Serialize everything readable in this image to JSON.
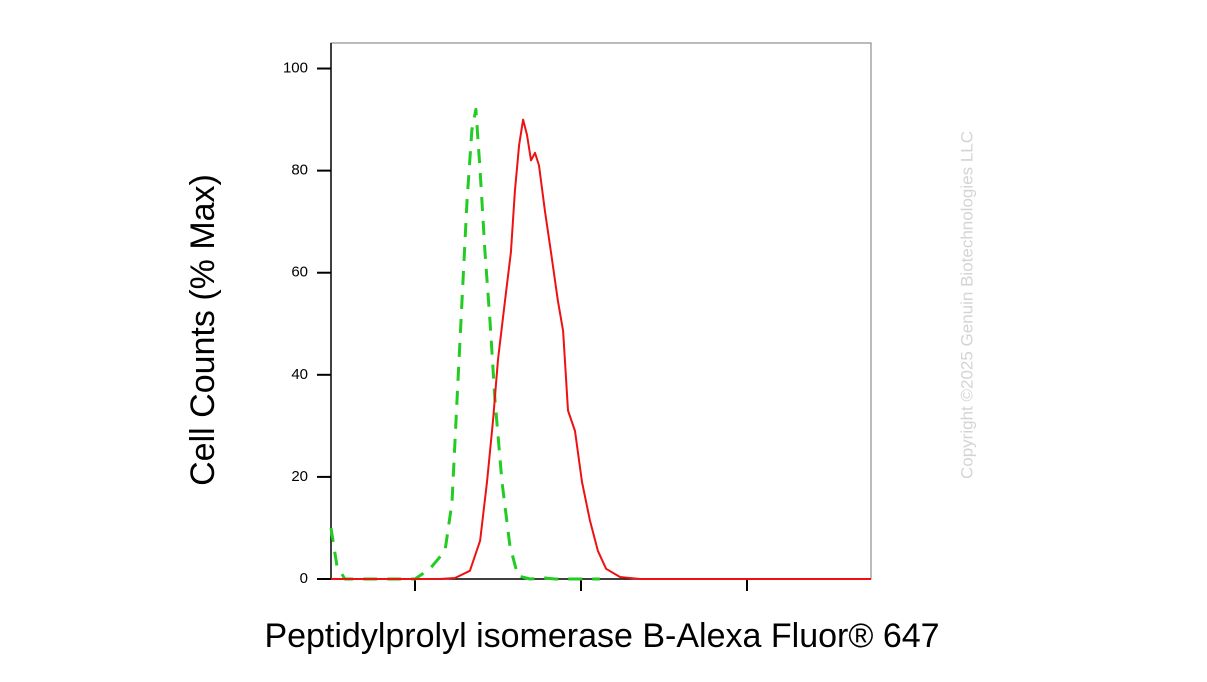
{
  "chart_data": {
    "type": "line",
    "ylabel": "Cell Counts (% Max)",
    "xlabel": "Peptidylprolyl isomerase B-Alexa Fluor® 647",
    "watermark": "Copyright ©2025 Genuin Biotechnologies LLC",
    "xlim": [
      2.494,
      5.747
    ],
    "xticks": [
      3,
      4,
      5
    ],
    "ylim": [
      0,
      105
    ],
    "yticks": [
      0,
      20,
      40,
      60,
      80,
      100
    ],
    "series": [
      {
        "color": "#22cc22",
        "dashed": true,
        "x": [
          2.494,
          2.53,
          2.578,
          3.0,
          3.09,
          3.181,
          3.223,
          3.253,
          3.283,
          3.313,
          3.343,
          3.367,
          3.392,
          3.422,
          3.452,
          3.482,
          3.524,
          3.572,
          3.62,
          3.693,
          3.783,
          3.843,
          4.114
        ],
        "values": [
          10,
          2.5,
          0,
          0,
          2,
          5.5,
          15,
          35,
          54.5,
          74,
          88,
          92,
          80,
          64,
          50.5,
          35,
          19,
          6.5,
          0.6,
          0,
          0.2,
          0,
          0
        ]
      },
      {
        "color": "#ee1111",
        "dashed": false,
        "x": [
          2.494,
          3.151,
          3.241,
          3.331,
          3.392,
          3.434,
          3.47,
          3.5,
          3.542,
          3.578,
          3.602,
          3.627,
          3.651,
          3.675,
          3.699,
          3.723,
          3.747,
          3.783,
          3.819,
          3.861,
          3.892,
          3.922,
          3.964,
          4.006,
          4.054,
          4.102,
          4.151,
          4.235,
          4.355,
          5.747
        ],
        "values": [
          0,
          0,
          0.2,
          1.6,
          7.5,
          19,
          31,
          43,
          54.5,
          64,
          76,
          85,
          90,
          87,
          82,
          83.5,
          81,
          72,
          64,
          54.5,
          48.6,
          33,
          29,
          19,
          11.4,
          5.5,
          2,
          0.4,
          0,
          0
        ]
      }
    ]
  }
}
